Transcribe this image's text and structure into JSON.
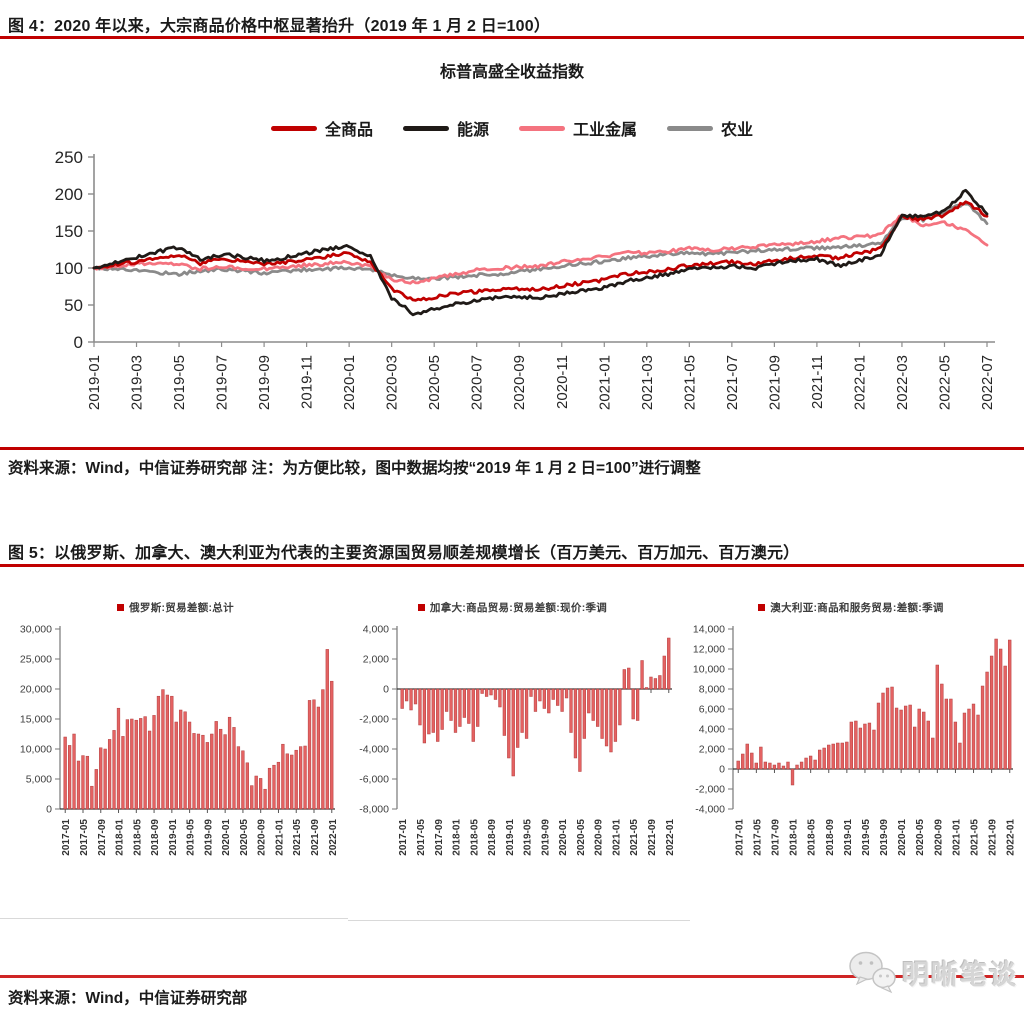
{
  "figure4": {
    "caption": "图 4：2020 年以来，大宗商品价格中枢显著抬升（2019 年 1 月 2 日=100）",
    "chart_title": "标普高盛全收益指数",
    "legend": [
      {
        "label": "全商品",
        "color": "#c00000"
      },
      {
        "label": "能源",
        "color": "#1f1a17"
      },
      {
        "label": "工业金属",
        "color": "#f4737f"
      },
      {
        "label": "农业",
        "color": "#8a8a8a"
      }
    ],
    "source_note": "资料来源：Wind，中信证券研究部  注：为方便比较，图中数据均按“2019 年 1 月 2 日=100”进行调整",
    "chart_data": {
      "type": "line",
      "title": "标普高盛全收益指数",
      "ylim": [
        0,
        250
      ],
      "yticks": [
        0,
        50,
        100,
        150,
        200,
        250
      ],
      "x": [
        "2019-01",
        "2019-02",
        "2019-03",
        "2019-04",
        "2019-05",
        "2019-06",
        "2019-07",
        "2019-08",
        "2019-09",
        "2019-10",
        "2019-11",
        "2019-12",
        "2020-01",
        "2020-02",
        "2020-03",
        "2020-04",
        "2020-05",
        "2020-06",
        "2020-07",
        "2020-08",
        "2020-09",
        "2020-10",
        "2020-11",
        "2020-12",
        "2021-01",
        "2021-02",
        "2021-03",
        "2021-04",
        "2021-05",
        "2021-06",
        "2021-07",
        "2021-08",
        "2021-09",
        "2021-10",
        "2021-11",
        "2021-12",
        "2022-01",
        "2022-02",
        "2022-03",
        "2022-04",
        "2022-05",
        "2022-06",
        "2022-07"
      ],
      "x_tick_every": 2,
      "series": [
        {
          "name": "农业",
          "color": "#8a8a8a",
          "values": [
            100,
            99,
            97,
            94,
            92,
            96,
            98,
            96,
            93,
            96,
            98,
            99,
            100,
            98,
            90,
            87,
            86,
            88,
            90,
            92,
            95,
            99,
            103,
            106,
            109,
            113,
            116,
            119,
            121,
            119,
            121,
            123,
            125,
            126,
            127,
            128,
            130,
            133,
            168,
            165,
            175,
            188,
            160
          ]
        },
        {
          "name": "工业金属",
          "color": "#f4737f",
          "values": [
            100,
            103,
            106,
            107,
            104,
            99,
            102,
            100,
            99,
            102,
            104,
            106,
            108,
            101,
            85,
            81,
            85,
            92,
            97,
            100,
            101,
            103,
            108,
            112,
            115,
            121,
            120,
            122,
            127,
            124,
            126,
            128,
            131,
            133,
            136,
            140,
            142,
            145,
            172,
            158,
            162,
            150,
            131
          ]
        },
        {
          "name": "全商品",
          "color": "#c00000",
          "values": [
            100,
            105,
            108,
            113,
            118,
            106,
            112,
            109,
            105,
            108,
            112,
            116,
            120,
            108,
            72,
            57,
            60,
            66,
            68,
            71,
            72,
            71,
            76,
            80,
            84,
            92,
            95,
            98,
            104,
            106,
            108,
            105,
            110,
            114,
            116,
            113,
            120,
            126,
            170,
            165,
            172,
            190,
            170
          ]
        },
        {
          "name": "能源",
          "color": "#1f1a17",
          "values": [
            100,
            108,
            114,
            122,
            128,
            112,
            118,
            115,
            110,
            114,
            120,
            126,
            130,
            115,
            60,
            38,
            44,
            52,
            56,
            60,
            61,
            60,
            65,
            70,
            73,
            82,
            87,
            92,
            98,
            100,
            103,
            99,
            106,
            110,
            112,
            103,
            110,
            118,
            172,
            168,
            178,
            205,
            173
          ]
        }
      ]
    }
  },
  "figure5": {
    "caption": "图 5：以俄罗斯、加拿大、澳大利亚为代表的主要资源国贸易顺差规模增长（百万美元、百万加元、百万澳元）",
    "source_note": "资料来源：Wind，中信证券研究部",
    "x_tick_labels": [
      "2017-01",
      "2017-05",
      "2017-09",
      "2018-01",
      "2018-05",
      "2018-09",
      "2019-01",
      "2019-05",
      "2019-09",
      "2020-01",
      "2020-05",
      "2020-09",
      "2021-01",
      "2021-05",
      "2021-09",
      "2022-01"
    ],
    "bar_color": "#e46262",
    "charts": [
      {
        "legend": "俄罗斯:贸易差额:总计",
        "chart_data": {
          "type": "bar",
          "ylim": [
            0,
            30000
          ],
          "yticks": [
            0,
            5000,
            10000,
            15000,
            20000,
            25000,
            30000
          ],
          "start_month": "2017-01",
          "values": [
            12000,
            10600,
            12500,
            8000,
            8900,
            8800,
            3800,
            6600,
            10200,
            10000,
            11600,
            13100,
            16800,
            12100,
            14900,
            15000,
            14800,
            15100,
            15400,
            13000,
            15600,
            18800,
            19900,
            19000,
            18800,
            14500,
            16500,
            16200,
            14500,
            12600,
            12500,
            12300,
            11100,
            12500,
            14600,
            13300,
            12400,
            15300,
            13600,
            10400,
            9700,
            7700,
            3900,
            5500,
            5100,
            3300,
            6800,
            7300,
            7800,
            10800,
            9200,
            9000,
            9800,
            10400,
            10500,
            18100,
            18200,
            17000,
            19900,
            26600,
            21300
          ]
        }
      },
      {
        "legend": "加拿大:商品贸易:贸易差额:现价:季调",
        "chart_data": {
          "type": "bar",
          "ylim": [
            -8000,
            4000
          ],
          "yticks": [
            -8000,
            -6000,
            -4000,
            -2000,
            0,
            2000,
            4000
          ],
          "start_month": "2017-01",
          "values": [
            -1300,
            -800,
            -1400,
            -1000,
            -2400,
            -3600,
            -3000,
            -2900,
            -3500,
            -2700,
            -1500,
            -2100,
            -2900,
            -2500,
            -1900,
            -2300,
            -3500,
            -2500,
            -300,
            -500,
            -400,
            -700,
            -1200,
            -3100,
            -4600,
            -5800,
            -3900,
            -2900,
            -3300,
            -500,
            -1500,
            -800,
            -1300,
            -1600,
            -700,
            -1100,
            -1500,
            -600,
            -2900,
            -4600,
            -5500,
            -3300,
            -1600,
            -2100,
            -2500,
            -3300,
            -3800,
            -4200,
            -3500,
            -2400,
            1300,
            1400,
            -2000,
            -2100,
            1900,
            100,
            800,
            700,
            900,
            2200,
            3400
          ]
        }
      },
      {
        "legend": "澳大利亚:商品和服务贸易:差额:季调",
        "chart_data": {
          "type": "bar",
          "ylim": [
            -4000,
            14000
          ],
          "yticks": [
            -4000,
            -2000,
            0,
            2000,
            4000,
            6000,
            8000,
            10000,
            12000,
            14000
          ],
          "start_month": "2017-01",
          "values": [
            800,
            1500,
            2500,
            1600,
            600,
            2200,
            700,
            600,
            400,
            600,
            300,
            700,
            -1600,
            400,
            700,
            1100,
            1300,
            900,
            1900,
            2100,
            2400,
            2500,
            2600,
            2600,
            2700,
            4700,
            4800,
            4100,
            4500,
            4600,
            3900,
            6600,
            7600,
            8100,
            8200,
            6100,
            5900,
            6300,
            6400,
            4200,
            6000,
            5700,
            4800,
            3100,
            10400,
            8500,
            7000,
            7000,
            4700,
            2600,
            5600,
            6000,
            6500,
            5400,
            8300,
            9700,
            11300,
            13000,
            12000,
            10300,
            12900
          ]
        }
      }
    ]
  },
  "watermark": {
    "text": "明晰笔谈"
  },
  "colors": {
    "accent_red": "#c00000",
    "axis_gray": "#8c8c8c",
    "label_dark": "#262626"
  }
}
